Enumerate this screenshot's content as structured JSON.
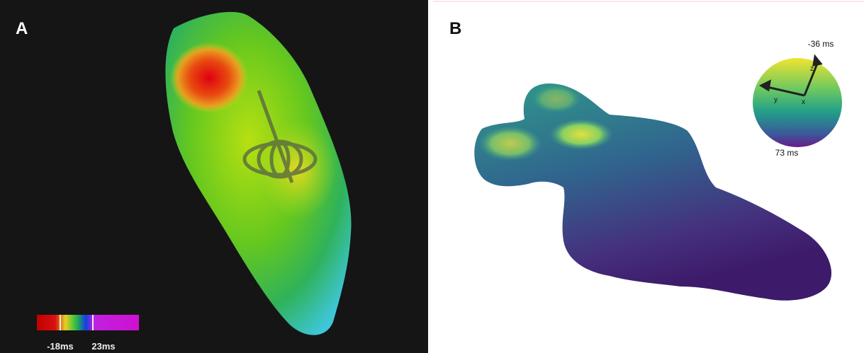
{
  "panels": [
    {
      "label": "A",
      "colorbar": {
        "min_label": "-18ms",
        "max_label": "23ms"
      }
    },
    {
      "label": "B",
      "orientation": {
        "top_label": "-36 ms",
        "bottom_label": "73 ms",
        "axes": [
          "z",
          "y",
          "x"
        ]
      }
    }
  ]
}
